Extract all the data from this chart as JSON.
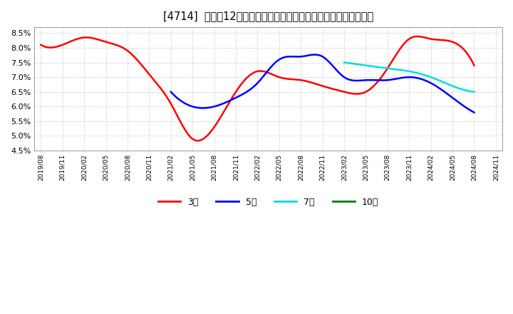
{
  "title": "[4714]  売上高12か月移動合計の対前年同期増減率の平均値の推移",
  "ylim": [
    0.045,
    0.087
  ],
  "yticks": [
    0.045,
    0.05,
    0.055,
    0.06,
    0.065,
    0.07,
    0.075,
    0.08,
    0.085
  ],
  "ytick_labels": [
    "4.5%",
    "5.0%",
    "5.5%",
    "6.0%",
    "6.5%",
    "7.0%",
    "7.5%",
    "8.0%",
    "8.5%"
  ],
  "xtick_labels": [
    "2019/08",
    "2019/11",
    "2020/02",
    "2020/05",
    "2020/08",
    "2020/11",
    "2021/02",
    "2021/05",
    "2021/08",
    "2021/11",
    "2022/02",
    "2022/05",
    "2022/08",
    "2022/11",
    "2023/02",
    "2023/05",
    "2023/08",
    "2023/11",
    "2024/02",
    "2024/05",
    "2024/08",
    "2024/11"
  ],
  "series": [
    {
      "label": "3年",
      "color": "#ff0000",
      "y": [
        0.081,
        0.081,
        0.0835,
        0.082,
        0.079,
        0.071,
        0.061,
        0.049,
        0.053,
        0.065,
        0.072,
        0.07,
        0.069,
        0.067,
        0.065,
        0.065,
        0.073,
        0.083,
        0.083,
        0.082,
        0.074,
        null
      ]
    },
    {
      "label": "5年",
      "color": "#0000ff",
      "y": [
        null,
        null,
        null,
        null,
        null,
        null,
        0.065,
        0.06,
        0.06,
        0.063,
        0.068,
        0.076,
        0.077,
        0.077,
        0.07,
        0.069,
        0.069,
        0.07,
        0.068,
        0.063,
        0.058,
        null
      ]
    },
    {
      "label": "7年",
      "color": "#00dddd",
      "y": [
        null,
        null,
        null,
        null,
        null,
        null,
        null,
        null,
        null,
        null,
        null,
        null,
        null,
        null,
        0.075,
        0.074,
        0.073,
        0.072,
        0.07,
        0.067,
        0.065,
        null
      ]
    },
    {
      "label": "10年",
      "color": "#008000",
      "y": [
        null,
        null,
        null,
        null,
        null,
        null,
        null,
        null,
        null,
        null,
        null,
        null,
        null,
        null,
        null,
        null,
        null,
        null,
        null,
        null,
        null,
        null
      ]
    }
  ],
  "background_color": "#ffffff",
  "plot_bg_color": "#ffffff",
  "grid_color": "#bbbbbb",
  "title_fontsize": 10.5,
  "legend_fontsize": 9
}
